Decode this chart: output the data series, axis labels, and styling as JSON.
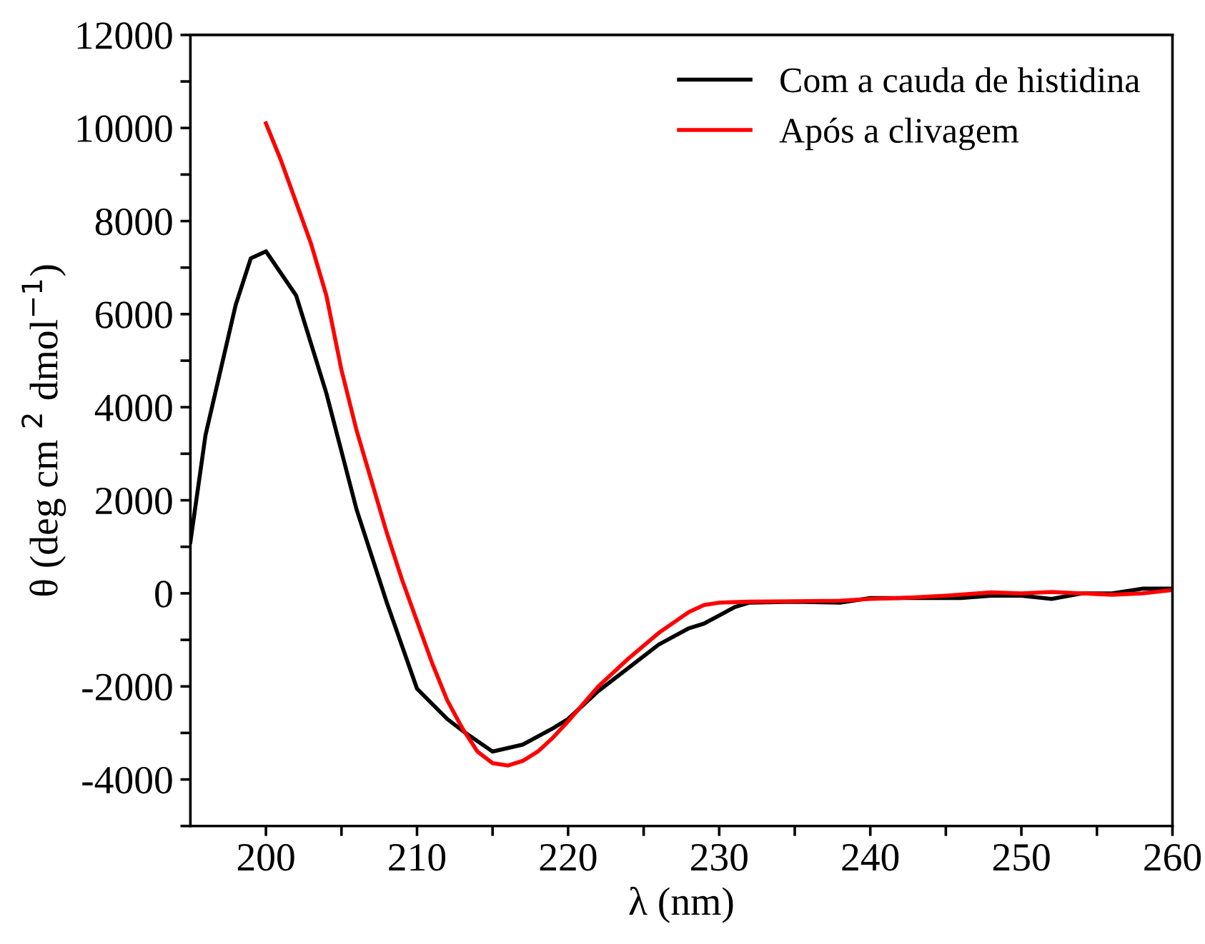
{
  "chart_data": {
    "type": "line",
    "xlabel": "λ (nm)",
    "ylabel": "θ (deg cm $^{2}$ dmol$^{−1}$)",
    "xlim": [
      195,
      260
    ],
    "ylim": [
      -5000,
      12000
    ],
    "xticks": [
      200,
      {
        "value": 205,
        "label": null
      },
      210,
      {
        "value": 215,
        "label": null
      },
      220,
      {
        "value": 225,
        "label": null
      },
      230,
      {
        "value": 235,
        "label": null
      },
      240,
      {
        "value": 245,
        "label": null
      },
      250,
      {
        "value": 255,
        "label": null
      },
      260
    ],
    "yticks": [
      {
        "value": -5000,
        "label": null
      },
      -4000,
      {
        "value": -3000,
        "label": null
      },
      -2000,
      {
        "value": -1000,
        "label": null
      },
      0,
      {
        "value": 1000,
        "label": null
      },
      2000,
      {
        "value": 3000,
        "label": null
      },
      4000,
      {
        "value": 5000,
        "label": null
      },
      6000,
      {
        "value": 7000,
        "label": null
      },
      8000,
      {
        "value": 9000,
        "label": null
      },
      10000,
      {
        "value": 11000,
        "label": null
      },
      12000
    ],
    "grid": false,
    "legend": "top right",
    "line_style": "solid",
    "marker": "none",
    "series": [
      {
        "name": "Com a cauda de histidina",
        "color": "#000000",
        "x": [
          195,
          196,
          198,
          199,
          200,
          202,
          204,
          206,
          208,
          210,
          212,
          213,
          215,
          217,
          219,
          220,
          222,
          224,
          226,
          228,
          229,
          231,
          232,
          235,
          238,
          240,
          243,
          246,
          248,
          250,
          252,
          254,
          256,
          258,
          260
        ],
        "values": [
          1100,
          3400,
          6200,
          7200,
          7350,
          6400,
          4300,
          1800,
          -200,
          -2050,
          -2700,
          -2950,
          -3400,
          -3250,
          -2900,
          -2700,
          -2100,
          -1600,
          -1100,
          -750,
          -650,
          -300,
          -200,
          -180,
          -200,
          -100,
          -100,
          -100,
          -50,
          -50,
          -120,
          0,
          0,
          100,
          100
        ]
      },
      {
        "name": "Após a clivagem",
        "color": "#ff0000",
        "x": [
          200,
          201,
          202,
          203,
          204,
          205,
          206,
          207,
          208,
          209,
          210,
          211,
          212,
          213,
          214,
          215,
          216,
          217,
          218,
          219,
          220,
          222,
          224,
          226,
          228,
          229,
          230,
          232,
          235,
          238,
          240,
          242,
          245,
          248,
          250,
          252,
          254,
          256,
          258,
          260
        ],
        "values": [
          10100,
          9300,
          8400,
          7500,
          6400,
          4800,
          3500,
          2400,
          1300,
          300,
          -600,
          -1500,
          -2300,
          -2900,
          -3400,
          -3650,
          -3700,
          -3600,
          -3400,
          -3100,
          -2750,
          -2000,
          -1400,
          -850,
          -400,
          -250,
          -200,
          -180,
          -170,
          -160,
          -120,
          -100,
          -50,
          20,
          0,
          30,
          0,
          -30,
          0,
          70
        ]
      }
    ]
  }
}
